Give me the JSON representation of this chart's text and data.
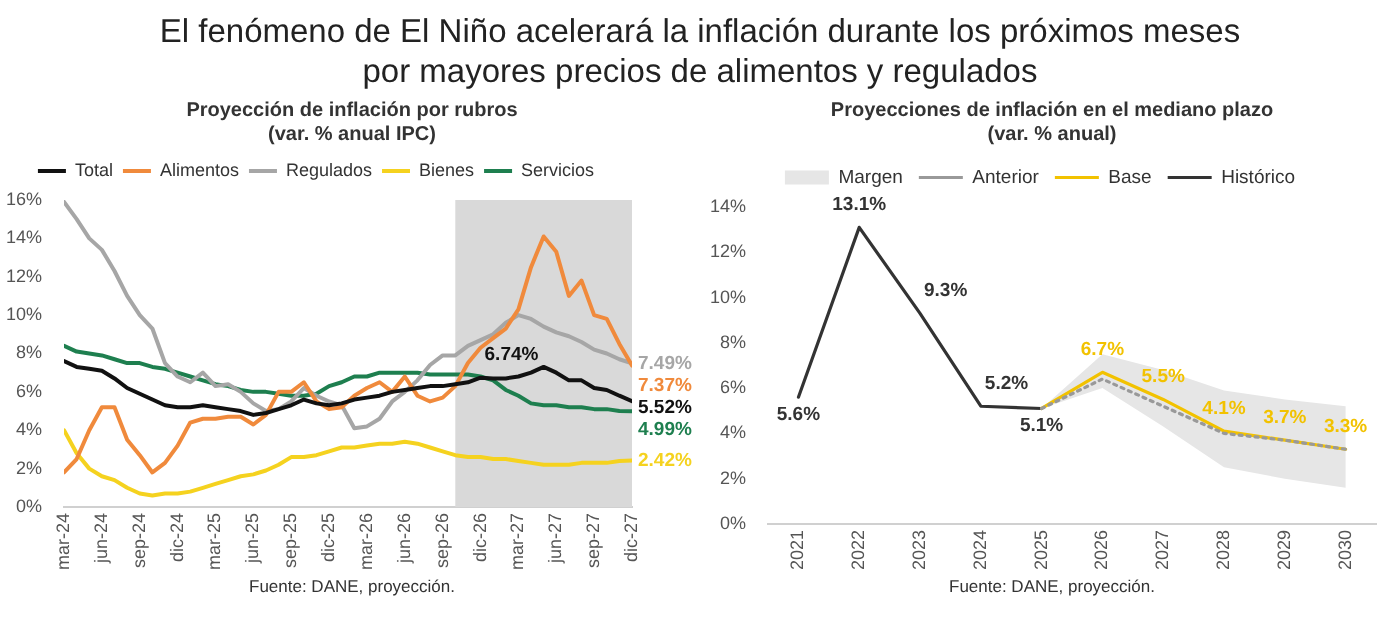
{
  "chart_data": [
    {
      "type": "line",
      "title": "El fenómeno de El Niño acelerará la inflación durante los próximos meses por mayores precios de alimentos y regulados",
      "subtitle": "Proyección de inflación por rubros (var. % anual IPC)",
      "annotations": [
        "Fuente: DANE, proyección."
      ],
      "x": [
        "2024-03",
        "2024-04",
        "2024-05",
        "2024-06",
        "2024-07",
        "2024-08",
        "2024-09",
        "2024-10",
        "2024-11",
        "2024-12",
        "2025-01",
        "2025-02",
        "2025-03",
        "2025-04",
        "2025-05",
        "2025-06",
        "2025-07",
        "2025-08",
        "2025-09",
        "2025-10",
        "2025-11",
        "2025-12",
        "2026-01",
        "2026-02",
        "2026-03",
        "2026-04",
        "2026-05",
        "2026-06",
        "2026-07",
        "2026-08",
        "2026-09",
        "2026-10",
        "2026-11",
        "2026-12",
        "2027-01",
        "2027-02",
        "2027-03",
        "2027-04",
        "2027-05",
        "2027-06",
        "2027-07",
        "2027-08",
        "2027-09",
        "2027-10",
        "2027-11",
        "2027-12"
      ],
      "xlim": [
        "2024-03",
        "2027-12"
      ],
      "xticks": [
        {
          "value": "2024-03",
          "label": "mar-24"
        },
        {
          "value": "2024-06",
          "label": "jun-24"
        },
        {
          "value": "2024-09",
          "label": "sep-24"
        },
        {
          "value": "2024-12",
          "label": "dic-24"
        },
        {
          "value": "2025-03",
          "label": "mar-25"
        },
        {
          "value": "2025-06",
          "label": "jun-25"
        },
        {
          "value": "2025-09",
          "label": "sep-25"
        },
        {
          "value": "2025-12",
          "label": "dic-25"
        },
        {
          "value": "2026-03",
          "label": "mar-26"
        },
        {
          "value": "2026-06",
          "label": "jun-26"
        },
        {
          "value": "2026-09",
          "label": "sep-26"
        },
        {
          "value": "2026-12",
          "label": "dic-26"
        },
        {
          "value": "2027-03",
          "label": "mar-27"
        },
        {
          "value": "2027-06",
          "label": "jun-27"
        },
        {
          "value": "2027-09",
          "label": "sep-27"
        },
        {
          "value": "2027-12",
          "label": "dic-27"
        }
      ],
      "ylim": [
        0,
        16
      ],
      "yticks": [
        {
          "value": 0,
          "label": "0%"
        },
        {
          "value": 2,
          "label": "2%"
        },
        {
          "value": 4,
          "label": "4%"
        },
        {
          "value": 6,
          "label": "6%"
        },
        {
          "value": 8,
          "label": "8%"
        },
        {
          "value": 10,
          "label": "10%"
        },
        {
          "value": 12,
          "label": "12%"
        },
        {
          "value": 14,
          "label": "14%"
        },
        {
          "value": 16,
          "label": "16%"
        }
      ],
      "bands": [
        {
          "axis": "x",
          "from": "2026-10",
          "to": "2027-12",
          "color": "#d9d9d9"
        }
      ],
      "grid": false,
      "legend": "top",
      "marker": "none",
      "line_style": "solid",
      "series": [
        {
          "name": "Total",
          "color": "#111111",
          "values": [
            7.6,
            7.3,
            7.2,
            7.1,
            6.7,
            6.2,
            5.9,
            5.6,
            5.3,
            5.2,
            5.2,
            5.3,
            5.2,
            5.1,
            5.0,
            4.8,
            4.9,
            5.1,
            5.3,
            5.6,
            5.4,
            5.3,
            5.4,
            5.6,
            5.7,
            5.8,
            6.0,
            6.1,
            6.2,
            6.3,
            6.3,
            6.4,
            6.5,
            6.74,
            6.7,
            6.7,
            6.8,
            7.0,
            7.3,
            7.0,
            6.6,
            6.6,
            6.2,
            6.1,
            5.8,
            5.52
          ],
          "value_labels": [
            null,
            null,
            null,
            null,
            null,
            null,
            null,
            null,
            null,
            null,
            null,
            null,
            null,
            null,
            null,
            null,
            null,
            null,
            null,
            null,
            null,
            null,
            null,
            null,
            null,
            null,
            null,
            null,
            null,
            null,
            null,
            null,
            null,
            "6.74%",
            null,
            null,
            null,
            null,
            null,
            null,
            null,
            null,
            null,
            null,
            null,
            "5.52%"
          ]
        },
        {
          "name": "Alimentos",
          "color": "#f08a3c",
          "values": [
            1.8,
            2.5,
            4.0,
            5.2,
            5.2,
            3.5,
            2.7,
            1.8,
            2.3,
            3.2,
            4.4,
            4.6,
            4.6,
            4.7,
            4.7,
            4.3,
            4.8,
            6.0,
            6.0,
            6.5,
            5.5,
            5.1,
            5.2,
            5.8,
            6.2,
            6.5,
            6.0,
            6.8,
            5.8,
            5.5,
            5.7,
            6.3,
            7.5,
            8.3,
            8.8,
            9.3,
            10.3,
            12.5,
            14.1,
            13.3,
            11.0,
            11.8,
            10.0,
            9.8,
            8.5,
            7.37
          ],
          "value_labels": [
            null,
            null,
            null,
            null,
            null,
            null,
            null,
            null,
            null,
            null,
            null,
            null,
            null,
            null,
            null,
            null,
            null,
            null,
            null,
            null,
            null,
            null,
            null,
            null,
            null,
            null,
            null,
            null,
            null,
            null,
            null,
            null,
            null,
            null,
            null,
            null,
            null,
            null,
            null,
            null,
            null,
            null,
            null,
            null,
            null,
            "7.37%"
          ]
        },
        {
          "name": "Regulados",
          "color": "#a6a6a6",
          "values": [
            15.9,
            15.0,
            14.0,
            13.4,
            12.3,
            11.0,
            10.0,
            9.3,
            7.5,
            6.8,
            6.5,
            7.0,
            6.3,
            6.4,
            6.0,
            5.4,
            5.0,
            5.1,
            5.5,
            6.2,
            5.8,
            5.5,
            5.3,
            4.1,
            4.2,
            4.6,
            5.5,
            6.0,
            6.6,
            7.4,
            7.9,
            7.9,
            8.4,
            8.7,
            9.0,
            9.6,
            10.0,
            9.8,
            9.4,
            9.1,
            8.9,
            8.6,
            8.2,
            8.0,
            7.7,
            7.49
          ],
          "value_labels": [
            null,
            null,
            null,
            null,
            null,
            null,
            null,
            null,
            null,
            null,
            null,
            null,
            null,
            null,
            null,
            null,
            null,
            null,
            null,
            null,
            null,
            null,
            null,
            null,
            null,
            null,
            null,
            null,
            null,
            null,
            null,
            null,
            null,
            null,
            null,
            null,
            null,
            null,
            null,
            null,
            null,
            null,
            null,
            null,
            null,
            "7.49%"
          ]
        },
        {
          "name": "Bienes",
          "color": "#f5d21f",
          "values": [
            4.0,
            2.8,
            2.0,
            1.6,
            1.4,
            1.0,
            0.7,
            0.6,
            0.7,
            0.7,
            0.8,
            1.0,
            1.2,
            1.4,
            1.6,
            1.7,
            1.9,
            2.2,
            2.6,
            2.6,
            2.7,
            2.9,
            3.1,
            3.1,
            3.2,
            3.3,
            3.3,
            3.4,
            3.3,
            3.1,
            2.9,
            2.7,
            2.6,
            2.6,
            2.5,
            2.5,
            2.4,
            2.3,
            2.2,
            2.2,
            2.2,
            2.3,
            2.3,
            2.3,
            2.4,
            2.42
          ],
          "value_labels": [
            null,
            null,
            null,
            null,
            null,
            null,
            null,
            null,
            null,
            null,
            null,
            null,
            null,
            null,
            null,
            null,
            null,
            null,
            null,
            null,
            null,
            null,
            null,
            null,
            null,
            null,
            null,
            null,
            null,
            null,
            null,
            null,
            null,
            null,
            null,
            null,
            null,
            null,
            null,
            null,
            null,
            null,
            null,
            null,
            null,
            "2.42%"
          ]
        },
        {
          "name": "Servicios",
          "color": "#1e7f4f",
          "values": [
            8.4,
            8.1,
            8.0,
            7.9,
            7.7,
            7.5,
            7.5,
            7.3,
            7.2,
            7.0,
            6.8,
            6.6,
            6.4,
            6.3,
            6.1,
            6.0,
            6.0,
            5.9,
            5.8,
            5.8,
            5.9,
            6.3,
            6.5,
            6.8,
            6.8,
            7.0,
            7.0,
            7.0,
            7.0,
            6.9,
            6.9,
            6.9,
            6.9,
            6.8,
            6.6,
            6.1,
            5.8,
            5.4,
            5.3,
            5.3,
            5.2,
            5.2,
            5.1,
            5.1,
            5.0,
            4.99
          ],
          "value_labels": [
            null,
            null,
            null,
            null,
            null,
            null,
            null,
            null,
            null,
            null,
            null,
            null,
            null,
            null,
            null,
            null,
            null,
            null,
            null,
            null,
            null,
            null,
            null,
            null,
            null,
            null,
            null,
            null,
            null,
            null,
            null,
            null,
            null,
            null,
            null,
            null,
            null,
            null,
            null,
            null,
            null,
            null,
            null,
            null,
            null,
            "4.99%"
          ]
        }
      ]
    },
    {
      "type": "line",
      "title": "Proyecciones de inflación en el mediano plazo (var. % anual)",
      "annotations": [
        "Fuente: DANE, proyección."
      ],
      "categories": [
        "2021",
        "2022",
        "2023",
        "2024",
        "2025",
        "2026",
        "2027",
        "2028",
        "2029",
        "2030"
      ],
      "ylim": [
        0,
        14
      ],
      "yticks": [
        {
          "value": 0,
          "label": "0%"
        },
        {
          "value": 2,
          "label": "2%"
        },
        {
          "value": 4,
          "label": "4%"
        },
        {
          "value": 6,
          "label": "6%"
        },
        {
          "value": 8,
          "label": "8%"
        },
        {
          "value": 10,
          "label": "10%"
        },
        {
          "value": 12,
          "label": "12%"
        },
        {
          "value": 14,
          "label": "14%"
        }
      ],
      "grid": false,
      "legend": "top",
      "marker": "none",
      "series": [
        {
          "name": "Margen",
          "type": "area",
          "color": "#e6e6e6",
          "values": [
            null,
            null,
            null,
            null,
            null,
            null,
            null,
            null,
            null,
            null
          ]
        },
        {
          "name": "Anterior",
          "color": "#999999",
          "line_style": "dotted",
          "values": [
            null,
            null,
            null,
            null,
            5.1,
            6.4,
            5.2,
            4.0,
            3.7,
            3.3
          ]
        },
        {
          "name": "Base",
          "color": "#f2c200",
          "line_style": "solid",
          "values": [
            null,
            null,
            null,
            null,
            5.1,
            6.7,
            5.5,
            4.1,
            3.7,
            3.3
          ],
          "lower": [
            null,
            null,
            null,
            null,
            5.1,
            6.0,
            4.3,
            2.5,
            2.0,
            1.6
          ],
          "upper": [
            null,
            null,
            null,
            null,
            5.1,
            7.5,
            6.8,
            5.9,
            5.5,
            5.2
          ],
          "value_labels": [
            null,
            null,
            null,
            null,
            null,
            "6.7%",
            "5.5%",
            "4.1%",
            "3.7%",
            "3.3%"
          ]
        },
        {
          "name": "Histórico",
          "color": "#333333",
          "line_style": "solid",
          "values": [
            5.6,
            13.1,
            9.3,
            5.2,
            5.1,
            null,
            null,
            null,
            null,
            null
          ],
          "value_labels": [
            "5.6%",
            "13.1%",
            "9.3%",
            "5.2%",
            "5.1%",
            null,
            null,
            null,
            null,
            null
          ]
        }
      ]
    }
  ]
}
